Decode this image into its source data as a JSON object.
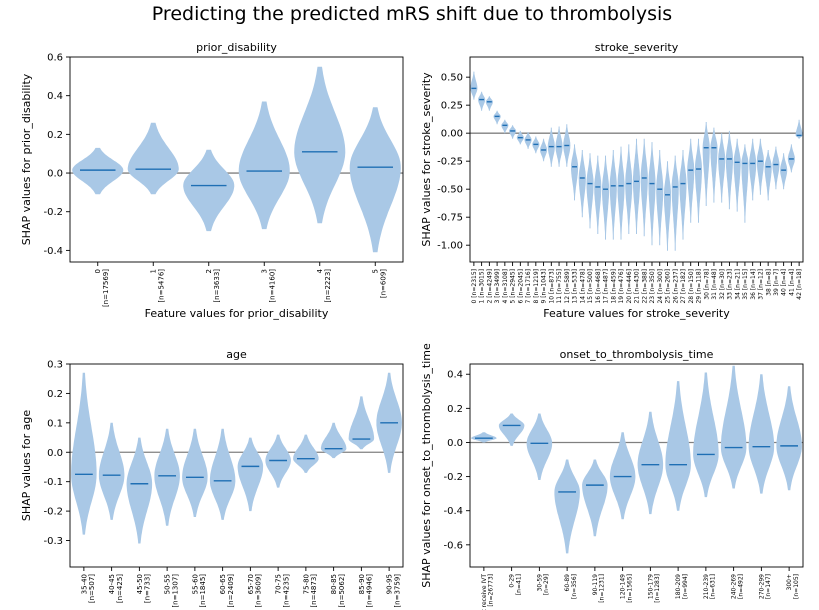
{
  "figure": {
    "title": "Predicting the predicted mRS shift due to thrombolysis"
  },
  "colors": {
    "violin": "#a9c8e6",
    "median": "#1f6fb4",
    "zero_line": "#808080",
    "axis": "#000000"
  },
  "chart_data": [
    {
      "type": "violin",
      "title": "prior_disability",
      "xlabel": "Feature values for prior_disability",
      "ylabel": "SHAP values for prior_disability",
      "ylim": [
        -0.46,
        0.6
      ],
      "yticks": [
        -0.4,
        -0.2,
        0.0,
        0.2,
        0.4,
        0.6
      ],
      "categories": [
        "0",
        "1",
        "2",
        "3",
        "4",
        "5"
      ],
      "counts": [
        "[n=17569]",
        "[n=5476]",
        "[n=3633]",
        "[n=4160]",
        "[n=2223]",
        "[n=609]"
      ],
      "medians": [
        0.015,
        0.02,
        -0.065,
        0.01,
        0.11,
        0.03
      ],
      "range_min": [
        -0.11,
        -0.11,
        -0.3,
        -0.29,
        -0.26,
        -0.41
      ],
      "range_max": [
        0.13,
        0.26,
        0.12,
        0.37,
        0.55,
        0.34
      ]
    },
    {
      "type": "violin",
      "title": "stroke_severity",
      "xlabel": "Feature values for stroke_severity",
      "ylabel": "SHAP values for stroke_severity",
      "ylim": [
        -1.15,
        0.68
      ],
      "yticks": [
        -1.0,
        -0.75,
        -0.5,
        -0.25,
        0.0,
        0.25,
        0.5
      ],
      "categories": [
        "0",
        "1",
        "2",
        "3",
        "4",
        "5",
        "6",
        "7",
        "8",
        "9",
        "10",
        "11",
        "12",
        "13",
        "14",
        "15",
        "16",
        "17",
        "18",
        "19",
        "20",
        "21",
        "22",
        "23",
        "24",
        "25",
        "26",
        "27",
        "28",
        "29",
        "30",
        "31",
        "32",
        "33",
        "34",
        "35",
        "36",
        "37",
        "38",
        "39",
        "40",
        "41",
        "42"
      ],
      "counts": [
        "[n=2315]",
        "[n=3015]",
        "[n=4249]",
        "[n=3499]",
        "[n=3108]",
        "[n=2945]",
        "[n=2045]",
        "[n=1716]",
        "[n=1219]",
        "[n=1043]",
        "[n=873]",
        "[n=755]",
        "[n=589]",
        "[n=533]",
        "[n=478]",
        "[n=500]",
        "[n=468]",
        "[n=487]",
        "[n=459]",
        "[n=476]",
        "[n=446]",
        "[n=430]",
        "[n=388]",
        "[n=350]",
        "[n=300]",
        "[n=260]",
        "[n=237]",
        "[n=182]",
        "[n=150]",
        "[n=118]",
        "[n=78]",
        "[n=48]",
        "[n=30]",
        "[n=23]",
        "[n=21]",
        "[n=15]",
        "[n=14]",
        "[n=12]",
        "[n=8]",
        "[n=7]",
        "[n=4]",
        "[n=4]",
        "[n=18]"
      ],
      "medians": [
        0.4,
        0.3,
        0.28,
        0.15,
        0.07,
        0.02,
        -0.04,
        -0.06,
        -0.1,
        -0.15,
        -0.12,
        -0.12,
        -0.11,
        -0.3,
        -0.4,
        -0.45,
        -0.48,
        -0.5,
        -0.47,
        -0.47,
        -0.45,
        -0.43,
        -0.4,
        -0.45,
        -0.5,
        -0.55,
        -0.48,
        -0.45,
        -0.33,
        -0.32,
        -0.13,
        -0.13,
        -0.23,
        -0.23,
        -0.26,
        -0.27,
        -0.27,
        -0.25,
        -0.3,
        -0.28,
        -0.33,
        -0.23,
        -0.02
      ],
      "range_min": [
        0.3,
        0.2,
        0.2,
        0.08,
        0.0,
        -0.05,
        -0.1,
        -0.14,
        -0.18,
        -0.25,
        -0.3,
        -0.3,
        -0.3,
        -0.6,
        -0.75,
        -0.85,
        -0.9,
        -0.95,
        -0.95,
        -0.95,
        -0.9,
        -0.9,
        -0.92,
        -1.0,
        -1.0,
        -1.05,
        -1.05,
        -0.95,
        -0.8,
        -0.8,
        -0.65,
        -0.62,
        -0.62,
        -0.68,
        -0.7,
        -0.8,
        -0.6,
        -0.55,
        -0.6,
        -0.5,
        -0.5,
        -0.35,
        -0.05
      ],
      "range_max": [
        0.55,
        0.37,
        0.33,
        0.2,
        0.12,
        0.07,
        0.02,
        0.01,
        -0.03,
        -0.05,
        0.05,
        0.06,
        0.08,
        -0.1,
        -0.15,
        -0.18,
        -0.2,
        -0.2,
        -0.15,
        -0.12,
        -0.1,
        -0.05,
        -0.05,
        -0.08,
        -0.15,
        -0.25,
        -0.2,
        -0.15,
        -0.05,
        -0.05,
        0.1,
        0.05,
        0.0,
        0.02,
        -0.05,
        -0.1,
        -0.05,
        -0.05,
        -0.15,
        -0.12,
        -0.18,
        -0.1,
        0.12
      ]
    },
    {
      "type": "violin",
      "title": "age",
      "xlabel": "",
      "ylabel": "SHAP values for age",
      "ylim": [
        -0.39,
        0.3
      ],
      "yticks": [
        -0.3,
        -0.2,
        -0.1,
        0.0,
        0.1,
        0.2,
        0.3
      ],
      "categories": [
        "35-40",
        "40-45",
        "45-50",
        "50-55",
        "55-60",
        "60-65",
        "65-70",
        "70-75",
        "75-80",
        "80-85",
        "85-90",
        "90-95"
      ],
      "counts": [
        "[n=507]",
        "[n=425]",
        "[n=733]",
        "[n=1307]",
        "[n=1845]",
        "[n=2409]",
        "[n=3609]",
        "[n=4235]",
        "[n=4873]",
        "[n=5062]",
        "[n=4946]",
        "[n=3759]"
      ],
      "medians": [
        -0.075,
        -0.078,
        -0.107,
        -0.08,
        -0.085,
        -0.097,
        -0.048,
        -0.028,
        -0.022,
        0.012,
        0.045,
        0.1
      ],
      "range_min": [
        -0.28,
        -0.23,
        -0.31,
        -0.25,
        -0.22,
        -0.23,
        -0.2,
        -0.12,
        -0.07,
        -0.02,
        0.01,
        -0.07
      ],
      "range_max": [
        0.27,
        0.1,
        0.05,
        0.08,
        0.08,
        0.08,
        0.05,
        0.06,
        0.06,
        0.1,
        0.19,
        0.27
      ]
    },
    {
      "type": "violin",
      "title": "onset_to_thrombolysis_time",
      "xlabel": "",
      "ylabel": "SHAP values for onset_to_thrombolysis_time",
      "ylim": [
        -0.73,
        0.46
      ],
      "yticks": [
        -0.6,
        -0.4,
        -0.2,
        0.0,
        0.2,
        0.4
      ],
      "categories": [
        "Did not receive IVT",
        "0-29",
        "30-59",
        "60-89",
        "90-119",
        "120-149",
        "150-179",
        "180-209",
        "210-239",
        "240-269",
        "270-299",
        "300+"
      ],
      "counts": [
        "[n=26773]",
        "[n=41]",
        "[n=29]",
        "[n=356]",
        "[n=1231]",
        "[n=1565]",
        "[n=1283]",
        "[n=994]",
        "[n=631]",
        "[n=492]",
        "[n=147]",
        "[n=105]"
      ],
      "medians": [
        0.025,
        0.1,
        -0.005,
        -0.29,
        -0.25,
        -0.2,
        -0.13,
        -0.13,
        -0.07,
        -0.03,
        -0.025,
        -0.02
      ],
      "range_min": [
        0.0,
        -0.02,
        -0.22,
        -0.65,
        -0.55,
        -0.45,
        -0.42,
        -0.4,
        -0.32,
        -0.27,
        -0.3,
        -0.28
      ],
      "range_max": [
        0.06,
        0.17,
        0.17,
        -0.1,
        -0.1,
        0.06,
        0.18,
        0.36,
        0.41,
        0.45,
        0.4,
        0.33
      ]
    }
  ]
}
